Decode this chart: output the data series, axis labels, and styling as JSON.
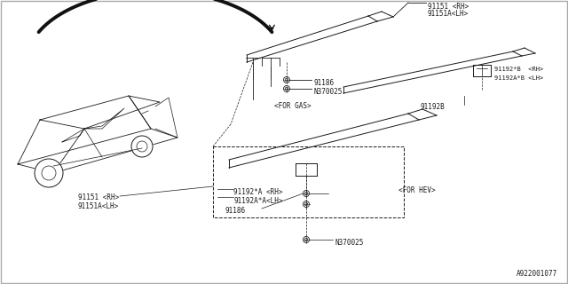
{
  "bg_color": "#ffffff",
  "line_color": "#1a1a1a",
  "diagram_num": "A922001077",
  "font_size": 5.5,
  "parts": {
    "gas_rh": "91151 <RH>",
    "gas_lh": "91151A<LH>",
    "gas_bolt1": "91186",
    "gas_bolt2": "N370025",
    "for_gas": "<FOR GAS>",
    "for_hev": "<FOR HEV>",
    "hev_b_rh": "91192*B  <RH>",
    "hev_b_lh": "91192A*B <LH>",
    "hev_92b": "91192B",
    "hev_rh": "91151 <RH>",
    "hev_lh": "91151A<LH>",
    "hev_a_rh": "91192*A <RH>",
    "hev_a_lh": "91192A*A<LH>",
    "hev_bolt1": "91186",
    "hev_bolt2": "N370025"
  }
}
